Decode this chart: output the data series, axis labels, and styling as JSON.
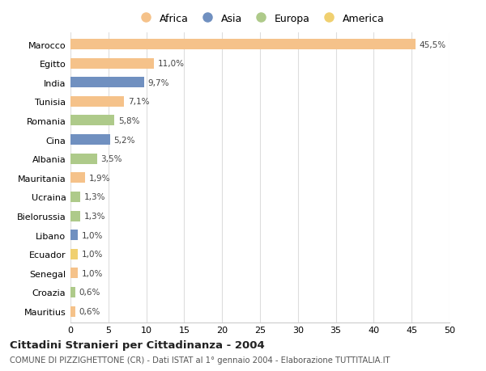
{
  "categories": [
    "Mauritius",
    "Croazia",
    "Senegal",
    "Ecuador",
    "Libano",
    "Bielorussia",
    "Ucraina",
    "Mauritania",
    "Albania",
    "Cina",
    "Romania",
    "Tunisia",
    "India",
    "Egitto",
    "Marocco"
  ],
  "values": [
    0.6,
    0.6,
    1.0,
    1.0,
    1.0,
    1.3,
    1.3,
    1.9,
    3.5,
    5.2,
    5.8,
    7.1,
    9.7,
    11.0,
    45.5
  ],
  "labels": [
    "0,6%",
    "0,6%",
    "1,0%",
    "1,0%",
    "1,0%",
    "1,3%",
    "1,3%",
    "1,9%",
    "3,5%",
    "5,2%",
    "5,8%",
    "7,1%",
    "9,7%",
    "11,0%",
    "45,5%"
  ],
  "colors": [
    "#F5C28A",
    "#AECA8A",
    "#F5C28A",
    "#F0D070",
    "#7090C0",
    "#AECA8A",
    "#AECA8A",
    "#F5C28A",
    "#AECA8A",
    "#7090C0",
    "#AECA8A",
    "#F5C28A",
    "#7090C0",
    "#F5C28A",
    "#F5C28A"
  ],
  "africa_color": "#F5C28A",
  "asia_color": "#7090C0",
  "europa_color": "#AECA8A",
  "america_color": "#F0D070",
  "legend": [
    {
      "label": "Africa",
      "color": "#F5C28A"
    },
    {
      "label": "Asia",
      "color": "#7090C0"
    },
    {
      "label": "Europa",
      "color": "#AECA8A"
    },
    {
      "label": "America",
      "color": "#F0D070"
    }
  ],
  "title": "Cittadini Stranieri per Cittadinanza - 2004",
  "subtitle": "COMUNE DI PIZZIGHETTONE (CR) - Dati ISTAT al 1° gennaio 2004 - Elaborazione TUTTITALIA.IT",
  "xlim": [
    0,
    50
  ],
  "xticks": [
    0,
    5,
    10,
    15,
    20,
    25,
    30,
    35,
    40,
    45,
    50
  ],
  "background_color": "#ffffff",
  "grid_color": "#dddddd",
  "bar_height": 0.55
}
